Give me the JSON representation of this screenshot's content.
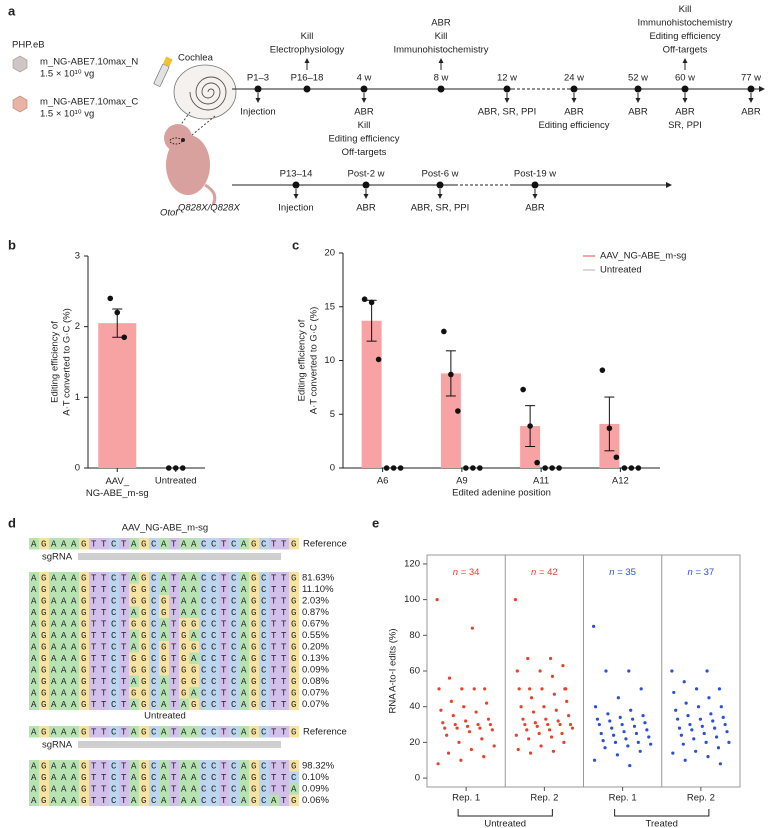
{
  "panel_labels": [
    "a",
    "b",
    "c",
    "d",
    "e"
  ],
  "panel_a": {
    "vector": "PHP.eB",
    "constructs": [
      {
        "name": "m_NG-ABE7.10max_N",
        "dose": "1.5 × 10¹⁰ vg"
      },
      {
        "name": "m_NG-ABE7.10max_C",
        "dose": "1.5 × 10¹⁰ vg"
      }
    ],
    "organ": "Cochlea",
    "genotype": {
      "gene": "Otof",
      "allele": "Q828X/Q828X"
    },
    "timelines": [
      {
        "nodes": [
          {
            "label": "P1–3",
            "below": [
              "Injection"
            ]
          },
          {
            "label": "P16–18",
            "above": [
              "Kill",
              "Electrophysiology"
            ]
          },
          {
            "label": "4 w",
            "below": [
              "ABR",
              "Kill",
              "Editing efficiency",
              "Off-targets"
            ]
          },
          {
            "label": "8 w",
            "above": [
              "ABR",
              "Kill",
              "Immunohistochemistry"
            ]
          },
          {
            "label": "12 w",
            "below": [
              "ABR, SR, PPI"
            ]
          },
          {
            "label": "24 w",
            "below": [
              "ABR",
              "Editing efficiency"
            ]
          },
          {
            "label": "52 w",
            "below": [
              "ABR"
            ]
          },
          {
            "label": "60 w",
            "above": [
              "Kill",
              "Immunohistochemistry",
              "Editing efficiency",
              "Off-targets"
            ],
            "below": [
              "ABR",
              "SR, PPI"
            ]
          },
          {
            "label": "77 w",
            "below": [
              "ABR"
            ]
          }
        ]
      },
      {
        "nodes": [
          {
            "label": "P13–14",
            "below": [
              "Injection"
            ]
          },
          {
            "label": "Post-2 w",
            "below": [
              "ABR"
            ]
          },
          {
            "label": "Post-6 w",
            "below": [
              "ABR, SR, PPI"
            ]
          },
          {
            "label": "Post-19 w",
            "below": [
              "ABR"
            ]
          }
        ]
      }
    ]
  },
  "chart_data": [
    {
      "type": "bar",
      "ylabel": [
        "Editing efficiency of",
        "A·T converted to G·C (%)"
      ],
      "categories": [
        "AAV_NG-ABE_m-sg",
        "Untreated"
      ],
      "ylim": [
        0,
        3
      ],
      "yticks": [
        0,
        1,
        2,
        3
      ],
      "series": [
        {
          "color": "#f7a3a3",
          "values": [
            2.05,
            0
          ],
          "errors": [
            0.2,
            null
          ],
          "points": [
            [
              2.4,
              2.2,
              1.85
            ],
            [
              0,
              0,
              0
            ]
          ]
        }
      ]
    },
    {
      "type": "bar",
      "ylabel": [
        "Editing efficiency of",
        "A·T converted to G·C (%)"
      ],
      "xlabel": "Edited adenine position",
      "categories": [
        "A6",
        "A9",
        "A11",
        "A12"
      ],
      "ylim": [
        0,
        20
      ],
      "yticks": [
        0,
        5,
        10,
        15,
        20
      ],
      "series": [
        {
          "name": "AAV_NG-ABE_m-sg",
          "color": "#f7a3a3",
          "values": [
            13.7,
            8.8,
            3.9,
            4.1
          ],
          "errors": [
            1.9,
            2.1,
            1.9,
            2.5
          ],
          "points": [
            [
              15.7,
              15.4,
              10.1
            ],
            [
              12.7,
              8.7,
              5.3
            ],
            [
              7.3,
              3.9,
              0.5
            ],
            [
              9.1,
              3.7,
              1.0
            ]
          ]
        },
        {
          "name": "Untreated",
          "color": "#d9d9d9",
          "values": [
            0,
            0,
            0,
            0
          ],
          "points": [
            [
              0,
              0,
              0
            ],
            [
              0,
              0,
              0
            ],
            [
              0,
              0,
              0
            ],
            [
              0,
              0,
              0
            ]
          ]
        }
      ]
    },
    {
      "type": "strip",
      "ylabel": "RNA A-to-I edits (%)",
      "ylim": [
        -5,
        125
      ],
      "yticks": [
        0,
        20,
        40,
        60,
        80,
        100,
        120
      ],
      "groups": [
        {
          "label": "Rep. 1",
          "n_label": "n = 34",
          "color": "#e8412c",
          "values": [
            100,
            84,
            56,
            50,
            50,
            50,
            50,
            43,
            42,
            40,
            38,
            37,
            35,
            33,
            32,
            31,
            30,
            30,
            30,
            29,
            28,
            28,
            28,
            27,
            26,
            24,
            22,
            20,
            18,
            16,
            14,
            12,
            10,
            8
          ]
        },
        {
          "label": "Rep. 2",
          "n_label": "n = 42",
          "color": "#e8412c",
          "values": [
            100,
            67,
            67,
            63,
            60,
            60,
            57,
            50,
            50,
            50,
            50,
            47,
            45,
            43,
            40,
            40,
            38,
            37,
            35,
            33,
            33,
            32,
            31,
            30,
            30,
            30,
            30,
            29,
            28,
            27,
            27,
            25,
            25,
            24,
            23,
            22,
            20,
            18,
            16,
            15,
            14,
            50
          ]
        },
        {
          "label": "Rep. 1",
          "n_label": "n = 35",
          "color": "#2b4fd6",
          "values": [
            85,
            60,
            60,
            50,
            45,
            40,
            38,
            36,
            35,
            34,
            33,
            33,
            32,
            31,
            30,
            30,
            29,
            28,
            27,
            26,
            25,
            25,
            24,
            23,
            22,
            21,
            20,
            20,
            19,
            18,
            17,
            15,
            13,
            10,
            7
          ]
        },
        {
          "label": "Rep. 2",
          "n_label": "n = 37",
          "color": "#2b4fd6",
          "values": [
            60,
            60,
            54,
            50,
            50,
            48,
            45,
            42,
            40,
            40,
            38,
            36,
            35,
            34,
            33,
            33,
            32,
            30,
            30,
            29,
            28,
            28,
            27,
            26,
            25,
            24,
            23,
            22,
            20,
            20,
            19,
            17,
            15,
            14,
            12,
            10,
            8
          ]
        }
      ],
      "brackets": [
        {
          "label": "Untreated"
        },
        {
          "label": "Treated"
        }
      ]
    }
  ],
  "panel_d": {
    "sections": [
      {
        "title": "AAV_NG-ABE_m-sg",
        "reference": {
          "sequence": "AGAAAGTTCTAGCATAACCTCAGCTTG",
          "label": "Reference"
        },
        "guide_label": "sgRNA",
        "rows": [
          {
            "sequence": "AGAAAGTTCTAGCATAACCTCAGCTTG",
            "percent": "81.63%"
          },
          {
            "sequence": "AGAAAGTTCTGGCATAACCTCAGCTTG",
            "percent": "11.10%"
          },
          {
            "sequence": "AGAAAGTTCTGGCGTAACCTCAGCTTG",
            "percent": "2.03%"
          },
          {
            "sequence": "AGAAAGTTCTAGCGTAACCTCAGCTTG",
            "percent": "0.87%"
          },
          {
            "sequence": "AGAAAGTTCTGGCATGGCCTCAGCTTG",
            "percent": "0.67%"
          },
          {
            "sequence": "AGAAAGTTCTAGCATGACCTCAGCTTG",
            "percent": "0.55%"
          },
          {
            "sequence": "AGAAAGTTCTAGCGTGGCCTCAGCTTG",
            "percent": "0.20%"
          },
          {
            "sequence": "AGAAAGTTCTGGCGTGACCTCAGCTTG",
            "percent": "0.13%"
          },
          {
            "sequence": "AGAAAGTTCTGGCGTGGCCTCAGCTTG",
            "percent": "0.09%"
          },
          {
            "sequence": "AGAAAGTTCTAGCATGGCCTCAGCTTG",
            "percent": "0.08%"
          },
          {
            "sequence": "AGAAAGTTCTGGCATGACCTCAGCTTG",
            "percent": "0.07%"
          },
          {
            "sequence": "AGAAAGTTCTAGCATAGCCTCAGCTTG",
            "percent": "0.07%"
          }
        ]
      },
      {
        "title": "Untreated",
        "reference": {
          "sequence": "AGAAAGTTCTAGCATAACCTCAGCTTG",
          "label": "Reference"
        },
        "guide_label": "sgRNA",
        "rows": [
          {
            "sequence": "AGAAAGTTCTAGCATAACCTCAGCTTG",
            "percent": "98.32%"
          },
          {
            "sequence": "AGAAAGTTCTAGCATAACCTCAGCTTC",
            "percent": "0.10%"
          },
          {
            "sequence": "AGAAAGTTCTAGCATAACCTCAGCTTA",
            "percent": "0.09%"
          },
          {
            "sequence": "AGAAAGTTCTAGCATAACCTCAGCATG",
            "percent": "0.06%"
          }
        ]
      }
    ]
  }
}
